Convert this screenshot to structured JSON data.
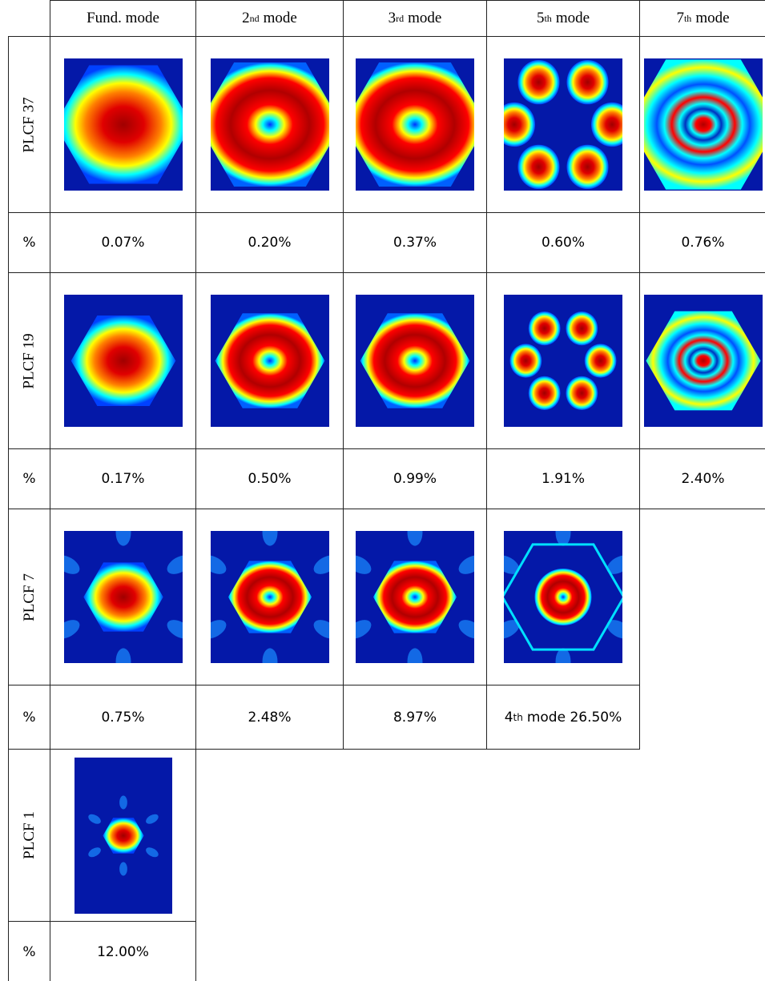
{
  "table": {
    "columns": [
      {
        "text": "Fund. mode"
      },
      {
        "base": "2",
        "sup": "nd",
        "text": "mode"
      },
      {
        "base": "3",
        "sup": "rd",
        "text": "mode"
      },
      {
        "base": "5",
        "sup": "th",
        "text": "mode"
      },
      {
        "base": "7",
        "sup": "th",
        "text": "mode"
      }
    ],
    "rows": [
      {
        "label": "PLCF 37",
        "unit": "%",
        "values": [
          "0.07%",
          "0.20%",
          "0.37%",
          "0.60%",
          "0.76%"
        ]
      },
      {
        "label": "PLCF 19",
        "unit": "%",
        "values": [
          "0.17%",
          "0.50%",
          "0.99%",
          "1.91%",
          "2.40%"
        ]
      },
      {
        "label": "PLCF 7",
        "unit": "%",
        "values": [
          "0.75%",
          "2.48%",
          "8.97%",
          {
            "base": "4",
            "sup": "th",
            "text": "mode 26.50%"
          }
        ]
      },
      {
        "label": "PLCF 1",
        "unit": "%",
        "values": [
          "12.00%"
        ]
      }
    ]
  }
}
